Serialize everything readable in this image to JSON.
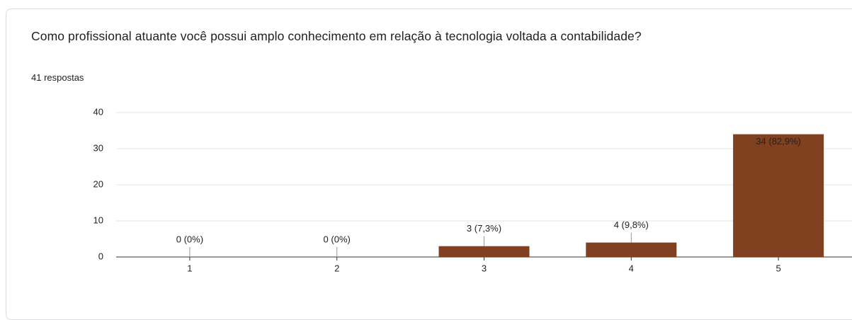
{
  "chart_data": {
    "type": "bar",
    "title": "Como profissional atuante você possui amplo conhecimento em relação à tecnologia voltada a contabilidade?",
    "subtitle": "41 respostas",
    "categories": [
      "1",
      "2",
      "3",
      "4",
      "5"
    ],
    "values": [
      0,
      0,
      3,
      4,
      34
    ],
    "value_labels": [
      "0 (0%)",
      "0 (0%)",
      "3 (7,3%)",
      "4 (9,8%)",
      "34 (82,9%)"
    ],
    "color": "#7f4120",
    "ylim": [
      0,
      40
    ],
    "yticks": [
      0,
      10,
      20,
      30,
      40
    ],
    "grid": true
  }
}
